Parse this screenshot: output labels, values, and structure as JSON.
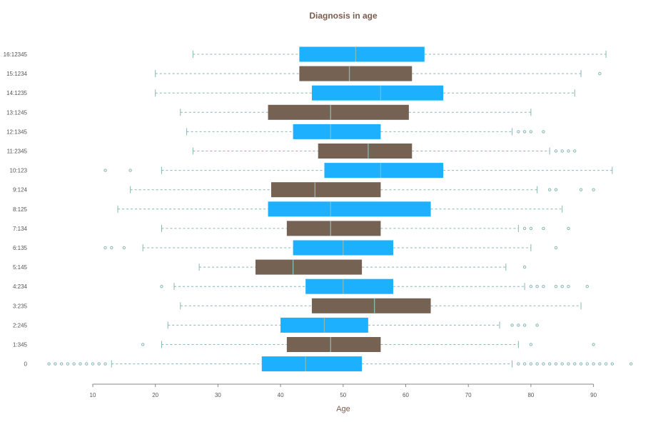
{
  "colors": {
    "blue": "#1cb0ff",
    "brown": "#756253",
    "whisker": "#87b8b4",
    "title": "#7a5c4e",
    "axis": "#888888"
  },
  "chart_data": {
    "type": "boxplot",
    "orientation": "horizontal",
    "title": "Diagnosis in age",
    "xlabel": "Age",
    "ylabel": "",
    "xlim": [
      0,
      93
    ],
    "x_ticks": [
      10,
      20,
      30,
      40,
      50,
      60,
      70,
      80,
      90
    ],
    "grid": false,
    "legend": "none",
    "categories": [
      "16:12345",
      "15:1234",
      "14:1235",
      "13:1245",
      "12:1345",
      "11:2345",
      "10:123",
      "9:124",
      "8:125",
      "7:134",
      "6:135",
      "5:145",
      "4:234",
      "3:235",
      "2:245",
      "1:345",
      "0"
    ],
    "boxes": [
      {
        "label": "16:12345",
        "whisker_low": 26,
        "q1": 43,
        "median": 52,
        "q3": 63,
        "whisker_high": 92,
        "outliers": [],
        "color": "blue"
      },
      {
        "label": "15:1234",
        "whisker_low": 20,
        "q1": 43,
        "median": 51,
        "q3": 61,
        "whisker_high": 88,
        "outliers": [
          91
        ],
        "color": "brown"
      },
      {
        "label": "14:1235",
        "whisker_low": 20,
        "q1": 45,
        "median": 56,
        "q3": 66,
        "whisker_high": 87,
        "outliers": [],
        "color": "blue"
      },
      {
        "label": "13:1245",
        "whisker_low": 24,
        "q1": 38,
        "median": 48,
        "q3": 60.5,
        "whisker_high": 80,
        "outliers": [],
        "color": "brown"
      },
      {
        "label": "12:1345",
        "whisker_low": 25,
        "q1": 42,
        "median": 48,
        "q3": 56,
        "whisker_high": 77,
        "outliers": [
          78,
          79,
          80,
          82
        ],
        "color": "blue"
      },
      {
        "label": "11:2345",
        "whisker_low": 26,
        "q1": 46,
        "median": 54,
        "q3": 61,
        "whisker_high": 83,
        "outliers": [
          84,
          85,
          86,
          87
        ],
        "color": "brown"
      },
      {
        "label": "10:123",
        "whisker_low": 21,
        "q1": 47,
        "median": 56,
        "q3": 66,
        "whisker_high": 93,
        "outliers": [
          12,
          16
        ],
        "color": "blue"
      },
      {
        "label": "9:124",
        "whisker_low": 16,
        "q1": 38.5,
        "median": 45.5,
        "q3": 56,
        "whisker_high": 81,
        "outliers": [
          83,
          84,
          88,
          90
        ],
        "color": "brown"
      },
      {
        "label": "8:125",
        "whisker_low": 14,
        "q1": 38,
        "median": 48,
        "q3": 64,
        "whisker_high": 85,
        "outliers": [],
        "color": "blue"
      },
      {
        "label": "7:134",
        "whisker_low": 21,
        "q1": 41,
        "median": 48,
        "q3": 56,
        "whisker_high": 78,
        "outliers": [
          79,
          80,
          82,
          86
        ],
        "color": "brown"
      },
      {
        "label": "6:135",
        "whisker_low": 18,
        "q1": 42,
        "median": 50,
        "q3": 58,
        "whisker_high": 80,
        "outliers": [
          12,
          13,
          15,
          84
        ],
        "color": "blue"
      },
      {
        "label": "5:145",
        "whisker_low": 27,
        "q1": 36,
        "median": 42,
        "q3": 53,
        "whisker_high": 76,
        "outliers": [
          79
        ],
        "color": "brown"
      },
      {
        "label": "4:234",
        "whisker_low": 23,
        "q1": 44,
        "median": 50,
        "q3": 58,
        "whisker_high": 79,
        "outliers": [
          21,
          80,
          81,
          82,
          84,
          85,
          86,
          89
        ],
        "color": "blue"
      },
      {
        "label": "3:235",
        "whisker_low": 24,
        "q1": 45,
        "median": 55,
        "q3": 64,
        "whisker_high": 88,
        "outliers": [],
        "color": "brown"
      },
      {
        "label": "2:245",
        "whisker_low": 22,
        "q1": 40,
        "median": 47,
        "q3": 54,
        "whisker_high": 75,
        "outliers": [
          77,
          78,
          79,
          81
        ],
        "color": "blue"
      },
      {
        "label": "1:345",
        "whisker_low": 21,
        "q1": 41,
        "median": 48,
        "q3": 56,
        "whisker_high": 78,
        "outliers": [
          18,
          80,
          90
        ],
        "color": "brown"
      },
      {
        "label": "0",
        "whisker_low": 13,
        "q1": 37,
        "median": 44,
        "q3": 53,
        "whisker_high": 77,
        "outliers": [
          3,
          4,
          5,
          6,
          7,
          8,
          9,
          10,
          11,
          12,
          78,
          79,
          80,
          81,
          82,
          83,
          84,
          85,
          86,
          87,
          88,
          89,
          90,
          91,
          92,
          93,
          96
        ],
        "color": "blue"
      }
    ]
  }
}
